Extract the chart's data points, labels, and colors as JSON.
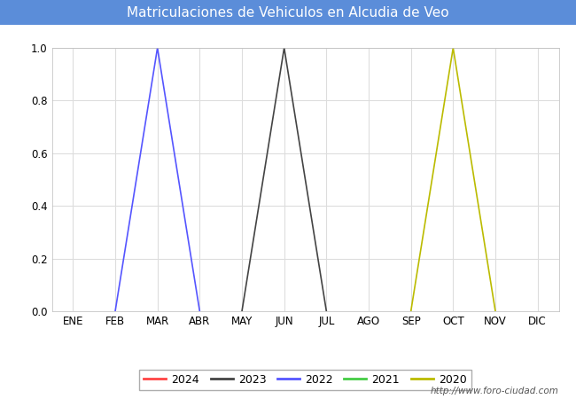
{
  "title": "Matriculaciones de Vehiculos en Alcudia de Veo",
  "title_bg_color": "#5b8dd9",
  "title_text_color": "#ffffff",
  "plot_bg_color": "#ffffff",
  "months": [
    "ENE",
    "FEB",
    "MAR",
    "ABR",
    "MAY",
    "JUN",
    "JUL",
    "AGO",
    "SEP",
    "OCT",
    "NOV",
    "DIC"
  ],
  "ylim": [
    0.0,
    1.0
  ],
  "yticks": [
    0.0,
    0.2,
    0.4,
    0.6,
    0.8,
    1.0
  ],
  "series": {
    "2024": {
      "color": "#ff4444",
      "data": [
        null,
        null,
        null,
        null,
        null,
        null,
        null,
        null,
        null,
        null,
        null,
        null
      ]
    },
    "2023": {
      "color": "#444444",
      "data": [
        null,
        null,
        null,
        null,
        0.0,
        1.0,
        0.0,
        null,
        null,
        null,
        null,
        null
      ]
    },
    "2022": {
      "color": "#5555ff",
      "data": [
        null,
        0.0,
        1.0,
        0.0,
        null,
        null,
        null,
        null,
        null,
        null,
        null,
        null
      ]
    },
    "2021": {
      "color": "#44cc44",
      "data": [
        null,
        null,
        null,
        null,
        null,
        null,
        null,
        null,
        null,
        null,
        null,
        null
      ]
    },
    "2020": {
      "color": "#bbbb00",
      "data": [
        null,
        null,
        null,
        null,
        null,
        null,
        null,
        null,
        0.0,
        1.0,
        0.0,
        null
      ]
    }
  },
  "legend_order": [
    "2024",
    "2023",
    "2022",
    "2021",
    "2020"
  ],
  "watermark": "http://www.foro-ciudad.com",
  "grid_color": "#dddddd",
  "grid_linewidth": 0.8,
  "figsize": [
    6.5,
    4.5
  ],
  "dpi": 100
}
